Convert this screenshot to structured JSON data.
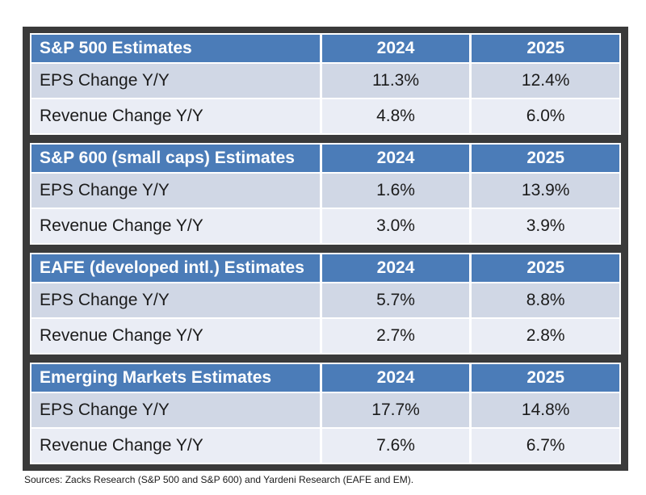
{
  "colors": {
    "header_blue": "#4b7cb8",
    "eps_row_bg": "#d0d7e5",
    "revenue_row_bg": "#eaedf5",
    "frame_dark": "#3a3a3a",
    "header_text": "#ffffff",
    "body_text": "#1b1b1b"
  },
  "chart_data": [
    {
      "type": "table",
      "title": "S&P 500 Estimates",
      "columns": [
        "2024",
        "2025"
      ],
      "rows": [
        {
          "label": "EPS Change Y/Y",
          "values": [
            11.3,
            12.4
          ],
          "display": [
            "11.3%",
            "12.4%"
          ]
        },
        {
          "label": "Revenue Change Y/Y",
          "values": [
            4.8,
            6.0
          ],
          "display": [
            "4.8%",
            "6.0%"
          ]
        }
      ]
    },
    {
      "type": "table",
      "title": "S&P 600 (small caps) Estimates",
      "columns": [
        "2024",
        "2025"
      ],
      "rows": [
        {
          "label": "EPS Change Y/Y",
          "values": [
            1.6,
            13.9
          ],
          "display": [
            "1.6%",
            "13.9%"
          ]
        },
        {
          "label": "Revenue Change Y/Y",
          "values": [
            3.0,
            3.9
          ],
          "display": [
            "3.0%",
            "3.9%"
          ]
        }
      ]
    },
    {
      "type": "table",
      "title": "EAFE (developed intl.) Estimates",
      "columns": [
        "2024",
        "2025"
      ],
      "rows": [
        {
          "label": "EPS Change Y/Y",
          "values": [
            5.7,
            8.8
          ],
          "display": [
            "5.7%",
            "8.8%"
          ]
        },
        {
          "label": "Revenue Change Y/Y",
          "values": [
            2.7,
            2.8
          ],
          "display": [
            "2.7%",
            "2.8%"
          ]
        }
      ]
    },
    {
      "type": "table",
      "title": "Emerging Markets Estimates",
      "columns": [
        "2024",
        "2025"
      ],
      "rows": [
        {
          "label": "EPS Change Y/Y",
          "values": [
            17.7,
            14.8
          ],
          "display": [
            "17.7%",
            "14.8%"
          ]
        },
        {
          "label": "Revenue Change Y/Y",
          "values": [
            7.6,
            6.7
          ],
          "display": [
            "7.6%",
            "6.7%"
          ]
        }
      ]
    }
  ],
  "source_note": "Sources: Zacks Research (S&P 500 and S&P 600) and Yardeni Research (EAFE and EM)."
}
